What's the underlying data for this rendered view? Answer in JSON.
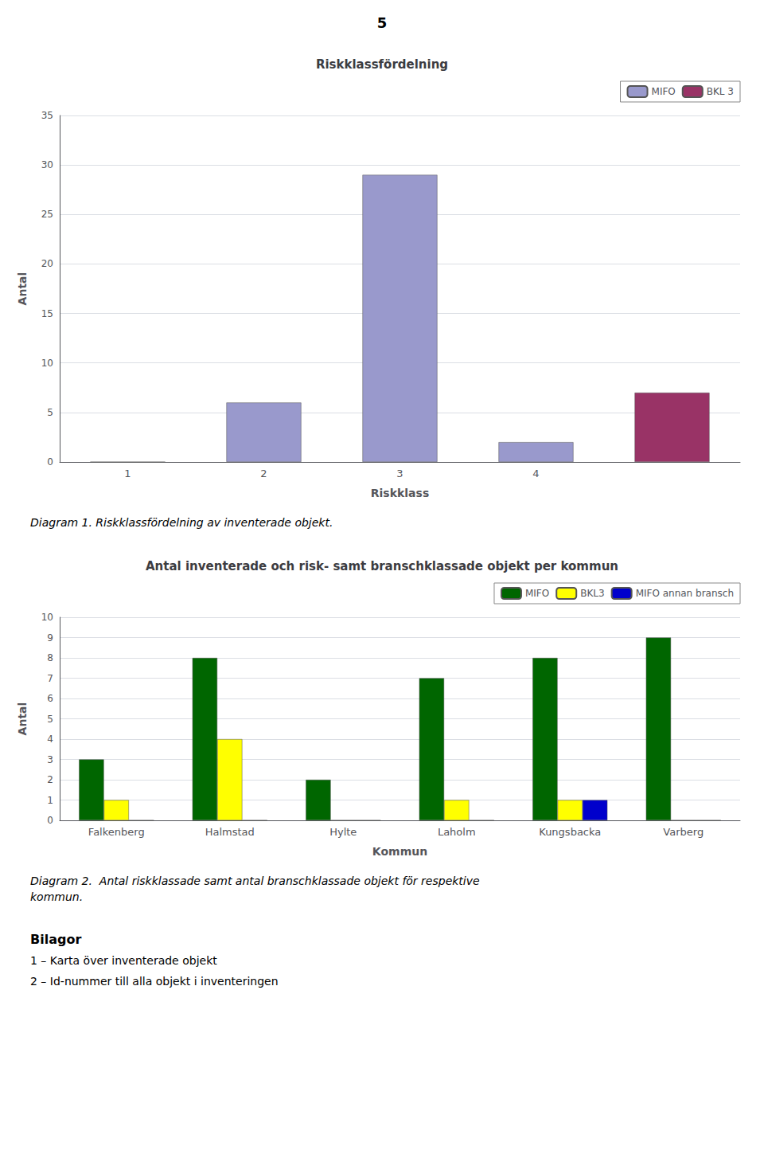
{
  "page_number": "5",
  "chart_data": [
    {
      "type": "bar",
      "title": "Riskklassfördelning",
      "x_label": "Riskklass",
      "y_label": "Antal",
      "categories": [
        "1",
        "2",
        "3",
        "4",
        null
      ],
      "series": [
        {
          "name": "MIFO",
          "color": "#9999CC",
          "values": [
            0,
            6,
            29,
            2,
            null
          ]
        },
        {
          "name": "BKL 3",
          "color": "#993366",
          "values": [
            null,
            null,
            null,
            null,
            7
          ]
        }
      ],
      "ylim": [
        0,
        35
      ],
      "yticks": [
        0,
        5,
        10,
        15,
        20,
        25,
        30,
        35
      ],
      "grid": true,
      "legend": "upper right",
      "annotations": [
        "Diagram 1. Riskklassfördelning av inventerade objekt."
      ]
    },
    {
      "type": "bar",
      "title": "Antal inventerade och risk- samt branschklassade objekt per kommun",
      "x_label": "Kommun",
      "y_label": "Antal",
      "categories": [
        "Falkenberg",
        "Halmstad",
        "Hylte",
        "Laholm",
        "Kungsbacka",
        "Varberg"
      ],
      "series": [
        {
          "name": "MIFO",
          "color": "#006600",
          "values": [
            3,
            8,
            2,
            7,
            8,
            9
          ]
        },
        {
          "name": "BKL3",
          "color": "#FFFF00",
          "values": [
            1,
            4,
            0,
            1,
            1,
            0
          ]
        },
        {
          "name": "MIFO annan bransch",
          "color": "#0000CC",
          "values": [
            0,
            0,
            0,
            0,
            1,
            0
          ]
        }
      ],
      "ylim": [
        0,
        10
      ],
      "yticks": [
        0,
        1,
        2,
        3,
        4,
        5,
        6,
        7,
        8,
        9,
        10
      ],
      "grid": true,
      "legend": "upper right",
      "annotations": [
        "Diagram 2.  Antal riskklassade samt antal branschklassade objekt för respektive",
        "kommun."
      ]
    }
  ],
  "appendix": {
    "title": "Bilagor",
    "items": [
      "1 – Karta över inventerade objekt",
      "2 – Id-nummer till alla objekt i inventeringen"
    ]
  }
}
